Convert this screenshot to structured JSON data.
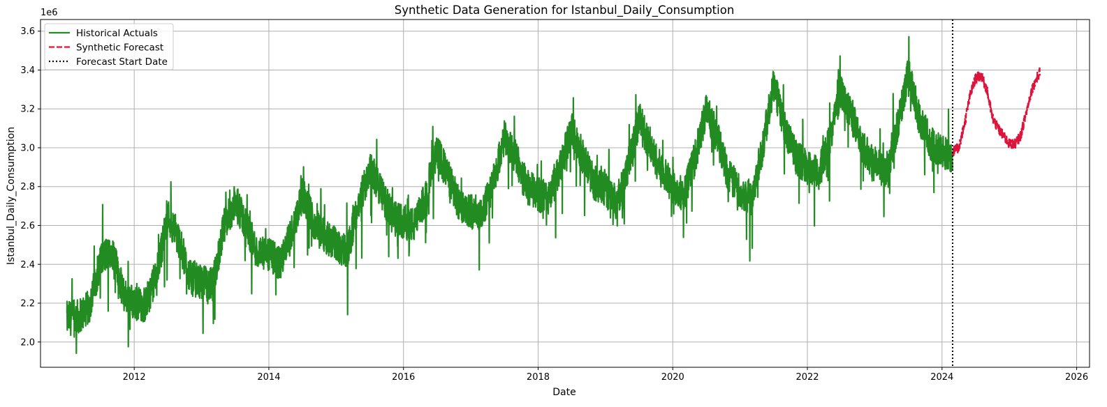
{
  "chart_data": {
    "type": "line",
    "title": "Synthetic Data Generation for Istanbul_Daily_Consumption",
    "xlabel": "Date",
    "ylabel": "Istanbul_Daily_Consumption",
    "y_offset_label": "1e6",
    "x_ticks": [
      "2012",
      "2014",
      "2016",
      "2018",
      "2020",
      "2022",
      "2024",
      "2026"
    ],
    "y_ticks": [
      "2.0",
      "2.2",
      "2.4",
      "2.6",
      "2.8",
      "3.0",
      "3.2",
      "3.4",
      "3.6"
    ],
    "xlim": [
      "2010-08-10",
      "2026-03-10"
    ],
    "ylim": [
      1870000,
      3660000
    ],
    "grid": true,
    "legend_position": "top-left",
    "forecast_start": "2024-02-28",
    "series": [
      {
        "name": "Historical Actuals",
        "style": "solid",
        "color": "#228b22",
        "x": [
          "2011-01",
          "2011-03",
          "2011-05",
          "2011-07",
          "2011-09",
          "2011-11",
          "2012-01",
          "2012-03",
          "2012-05",
          "2012-07",
          "2012-09",
          "2012-11",
          "2013-01",
          "2013-03",
          "2013-05",
          "2013-07",
          "2013-09",
          "2013-11",
          "2014-01",
          "2014-03",
          "2014-05",
          "2014-07",
          "2014-09",
          "2014-11",
          "2015-01",
          "2015-03",
          "2015-05",
          "2015-07",
          "2015-09",
          "2015-11",
          "2016-01",
          "2016-03",
          "2016-05",
          "2016-07",
          "2016-09",
          "2016-11",
          "2017-01",
          "2017-03",
          "2017-05",
          "2017-07",
          "2017-09",
          "2017-11",
          "2018-01",
          "2018-03",
          "2018-05",
          "2018-07",
          "2018-09",
          "2018-11",
          "2019-01",
          "2019-03",
          "2019-05",
          "2019-07",
          "2019-09",
          "2019-11",
          "2020-01",
          "2020-03",
          "2020-05",
          "2020-07",
          "2020-09",
          "2020-11",
          "2021-01",
          "2021-03",
          "2021-05",
          "2021-07",
          "2021-09",
          "2021-11",
          "2022-01",
          "2022-03",
          "2022-05",
          "2022-07",
          "2022-09",
          "2022-11",
          "2023-01",
          "2023-03",
          "2023-05",
          "2023-07",
          "2023-09",
          "2023-11",
          "2024-01",
          "2024-02"
        ],
        "values": [
          2120000,
          2130000,
          2180000,
          2420000,
          2480000,
          2250000,
          2200000,
          2190000,
          2350000,
          2650000,
          2520000,
          2330000,
          2310000,
          2290000,
          2600000,
          2720000,
          2600000,
          2450000,
          2450000,
          2400000,
          2560000,
          2760000,
          2620000,
          2550000,
          2500000,
          2470000,
          2700000,
          2900000,
          2780000,
          2640000,
          2620000,
          2600000,
          2750000,
          2980000,
          2850000,
          2700000,
          2680000,
          2660000,
          2820000,
          3050000,
          2950000,
          2800000,
          2760000,
          2740000,
          2900000,
          3100000,
          2950000,
          2820000,
          2780000,
          2720000,
          2900000,
          3150000,
          3000000,
          2880000,
          2800000,
          2760000,
          2950000,
          3200000,
          3050000,
          2850000,
          2780000,
          2740000,
          3000000,
          3330000,
          3100000,
          2950000,
          2900000,
          2860000,
          3050000,
          3300000,
          3150000,
          3000000,
          2930000,
          2870000,
          3100000,
          3380000,
          3150000,
          3020000,
          2980000,
          2960000
        ]
      },
      {
        "name": "Synthetic Forecast",
        "style": "dashed",
        "color": "#dc143c",
        "x": [
          "2024-02-28",
          "2024-04-01",
          "2024-05-01",
          "2024-06-01",
          "2024-07-01",
          "2024-08-01",
          "2024-09-01",
          "2024-10-01",
          "2024-11-01",
          "2024-12-01",
          "2025-01-01",
          "2025-02-01",
          "2025-03-01",
          "2025-04-01",
          "2025-05-01",
          "2025-06-15"
        ],
        "values": [
          2980000,
          3000000,
          3120000,
          3270000,
          3360000,
          3370000,
          3300000,
          3150000,
          3100000,
          3060000,
          3020000,
          3020000,
          3060000,
          3180000,
          3300000,
          3390000
        ]
      },
      {
        "name": "Forecast Start Date",
        "style": "dotted",
        "color": "#000000"
      }
    ]
  }
}
